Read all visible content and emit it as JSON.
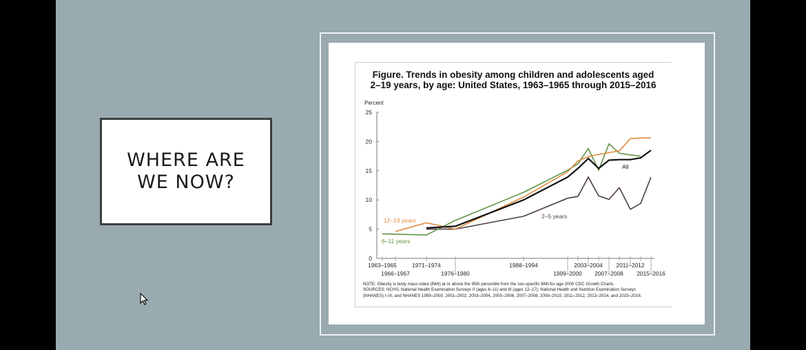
{
  "slide": {
    "background_color": "#99aab0",
    "title": "WHERE ARE\nWE NOW?"
  },
  "figure": {
    "title": "Figure. Trends in obesity among children and adolescents aged\n2–19 years, by age: United States, 1963–1965 through 2015–2016",
    "note_lines": [
      "NOTE: Obesity is body mass index (BMI) at or above the 95th percentile from the sex-specific BMI-for-age 2000 CDC Growth Charts.",
      "SOURCES: NCHS, National Health Examination Surveys II (ages 6–11) and III (ages 12–17); National Health and Nutrition Examination Surveys",
      "(NHANES) I–III, and NHANES 1999–2000, 2001–2002, 2003–2004, 2005–2006, 2007–2008, 2009–2010, 2011–2012, 2013–2014, and 2015–2016."
    ]
  },
  "chart_data": {
    "type": "line",
    "title": "Trends in obesity among children and adolescents aged 2–19 years, by age: United States, 1963–1965 through 2015–2016",
    "xlabel": "",
    "ylabel": "Percent",
    "ylim": [
      0,
      25
    ],
    "yticks": [
      0,
      5,
      10,
      15,
      20,
      25
    ],
    "grid": false,
    "legend_position": "inline labels",
    "x": [
      "1963–1965",
      "1966–1967",
      "1971–1974",
      "1976–1980",
      "1988–1994",
      "1999–2000",
      "2001–2002",
      "2003–2004",
      "2005–2006",
      "2007–2008",
      "2009–2010",
      "2011–2012",
      "2013–2014",
      "2015–2016"
    ],
    "x_labels_top": [
      "1963–1965",
      "1971–1974",
      "1988–1994",
      "2003–2004",
      "2011–2012"
    ],
    "x_labels_bottom": [
      "1966–1967",
      "1976–1980",
      "1999–2000",
      "2007–2008",
      "2015–2016"
    ],
    "series": [
      {
        "name": "All",
        "color": "#111111",
        "values": [
          null,
          null,
          5.2,
          5.5,
          10.0,
          13.9,
          15.4,
          17.1,
          15.4,
          16.8,
          16.9,
          16.9,
          17.2,
          18.5
        ]
      },
      {
        "name": "12–19 years",
        "color": "#e08a3c",
        "values": [
          null,
          4.6,
          6.1,
          5.0,
          10.5,
          14.8,
          16.7,
          17.4,
          17.8,
          18.1,
          18.4,
          20.5,
          20.6,
          20.6
        ]
      },
      {
        "name": "6–11 years",
        "color": "#5f9445",
        "values": [
          4.2,
          null,
          4.0,
          6.5,
          11.3,
          15.1,
          16.2,
          18.8,
          15.1,
          19.6,
          18.0,
          17.7,
          17.5,
          null
        ]
      },
      {
        "name": "2–5 years",
        "color": "#4f3f4a",
        "values": [
          null,
          null,
          5.0,
          5.0,
          7.2,
          10.3,
          10.6,
          13.9,
          10.7,
          10.1,
          12.1,
          8.4,
          9.4,
          13.9
        ]
      }
    ],
    "annotations": [
      {
        "text": "All",
        "series": "All"
      },
      {
        "text": "12–19 years",
        "series": "12–19 years"
      },
      {
        "text": "6–11 years",
        "series": "6–11 years"
      },
      {
        "text": "2–5 years",
        "series": "2–5 years"
      }
    ]
  },
  "cursor": {
    "icon": "arrow-pointer-icon"
  }
}
